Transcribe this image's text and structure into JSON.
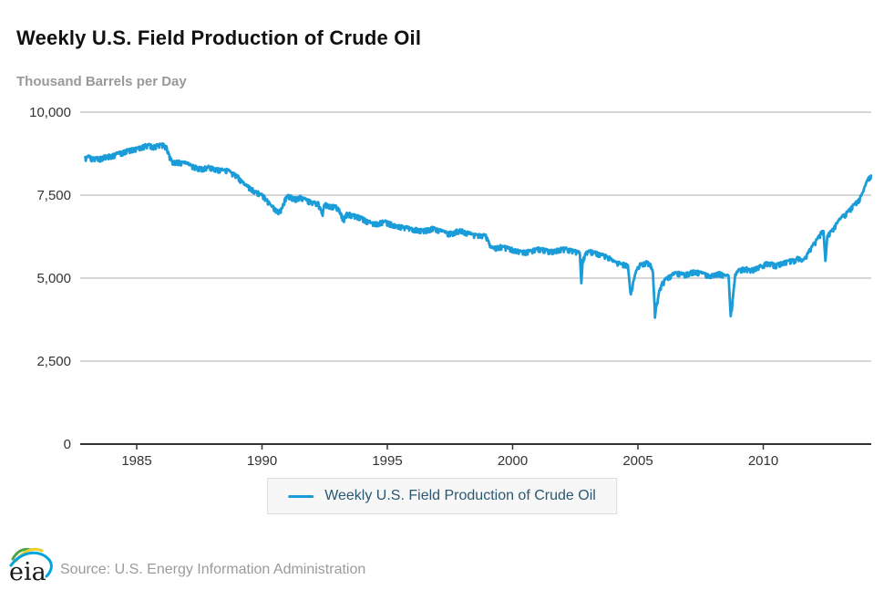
{
  "header": {
    "title": "Weekly U.S. Field Production of Crude Oil",
    "unit_label": "Thousand Barrels per Day"
  },
  "legend": {
    "items": [
      {
        "label": "Weekly U.S. Field Production of Crude Oil",
        "color": "#1a9cd8"
      }
    ]
  },
  "footer": {
    "source": "Source: U.S. Energy Information Administration",
    "logo_name": "eia-logo"
  },
  "colors": {
    "series_blue": "#1a9cd8",
    "gridline": "#d6d6d6",
    "axis_line": "#333333",
    "tick_text": "#333333",
    "subtitle_gray": "#999999",
    "legend_text": "#2b5871",
    "legend_bg": "#f7f7f7",
    "legend_border": "#dcdcdc"
  },
  "chart_data": {
    "type": "line",
    "title": "Weekly U.S. Field Production of Crude Oil",
    "ylabel": "Thousand Barrels per Day",
    "xlabel": "",
    "y_unit": "thousand barrels per day",
    "x_unit": "year (weekly observations, 1983 - mid 2014)",
    "xlim": [
      1982.9,
      2014.35
    ],
    "ylim": [
      0,
      10000
    ],
    "grid": "horizontal",
    "legend_position": "bottom",
    "yticks": [
      {
        "value": 0,
        "label": "0"
      },
      {
        "value": 2500,
        "label": "2,500"
      },
      {
        "value": 5000,
        "label": "5,000"
      },
      {
        "value": 7500,
        "label": "7,500"
      },
      {
        "value": 10000,
        "label": "10,000"
      }
    ],
    "xticks": [
      {
        "value": 1985,
        "label": "1985"
      },
      {
        "value": 1990,
        "label": "1990"
      },
      {
        "value": 1995,
        "label": "1995"
      },
      {
        "value": 2000,
        "label": "2000"
      },
      {
        "value": 2005,
        "label": "2005"
      },
      {
        "value": 2010,
        "label": "2010"
      }
    ],
    "series": [
      {
        "name": "Weekly U.S. Field Production of Crude Oil",
        "color": "#1a9cd8",
        "line_width": 2.8,
        "weekly_noise_kbd": 40,
        "anchor_points": [
          [
            1982.95,
            8620
          ],
          [
            1983.1,
            8660
          ],
          [
            1983.25,
            8600
          ],
          [
            1983.4,
            8630
          ],
          [
            1983.55,
            8610
          ],
          [
            1983.7,
            8660
          ],
          [
            1983.85,
            8680
          ],
          [
            1984.0,
            8700
          ],
          [
            1984.15,
            8730
          ],
          [
            1984.3,
            8770
          ],
          [
            1984.45,
            8800
          ],
          [
            1984.6,
            8850
          ],
          [
            1984.75,
            8880
          ],
          [
            1984.9,
            8900
          ],
          [
            1985.05,
            8920
          ],
          [
            1985.2,
            8960
          ],
          [
            1985.35,
            9000
          ],
          [
            1985.5,
            9020
          ],
          [
            1985.65,
            8970
          ],
          [
            1985.8,
            9000
          ],
          [
            1985.95,
            9040
          ],
          [
            1986.1,
            9000
          ],
          [
            1986.2,
            8950
          ],
          [
            1986.3,
            8700
          ],
          [
            1986.4,
            8520
          ],
          [
            1986.55,
            8510
          ],
          [
            1986.7,
            8500
          ],
          [
            1986.85,
            8490
          ],
          [
            1987.0,
            8460
          ],
          [
            1987.15,
            8400
          ],
          [
            1987.3,
            8360
          ],
          [
            1987.45,
            8330
          ],
          [
            1987.6,
            8300
          ],
          [
            1987.75,
            8330
          ],
          [
            1987.9,
            8350
          ],
          [
            1988.05,
            8320
          ],
          [
            1988.2,
            8290
          ],
          [
            1988.35,
            8260
          ],
          [
            1988.5,
            8260
          ],
          [
            1988.65,
            8270
          ],
          [
            1988.8,
            8170
          ],
          [
            1989.0,
            8100
          ],
          [
            1989.15,
            7950
          ],
          [
            1989.3,
            7820
          ],
          [
            1989.45,
            7760
          ],
          [
            1989.6,
            7680
          ],
          [
            1989.75,
            7610
          ],
          [
            1989.9,
            7550
          ],
          [
            1990.05,
            7480
          ],
          [
            1990.2,
            7360
          ],
          [
            1990.35,
            7200
          ],
          [
            1990.5,
            7100
          ],
          [
            1990.65,
            7020
          ],
          [
            1990.8,
            7090
          ],
          [
            1990.92,
            7400
          ],
          [
            1991.05,
            7480
          ],
          [
            1991.2,
            7440
          ],
          [
            1991.35,
            7390
          ],
          [
            1991.5,
            7460
          ],
          [
            1991.65,
            7400
          ],
          [
            1991.8,
            7340
          ],
          [
            1991.95,
            7310
          ],
          [
            1992.1,
            7280
          ],
          [
            1992.25,
            7260
          ],
          [
            1992.4,
            6910
          ],
          [
            1992.5,
            7230
          ],
          [
            1992.65,
            7200
          ],
          [
            1992.8,
            7170
          ],
          [
            1992.95,
            7150
          ],
          [
            1993.1,
            7060
          ],
          [
            1993.25,
            6760
          ],
          [
            1993.4,
            6960
          ],
          [
            1993.55,
            6910
          ],
          [
            1993.7,
            6890
          ],
          [
            1993.85,
            6860
          ],
          [
            1994.0,
            6810
          ],
          [
            1994.15,
            6740
          ],
          [
            1994.3,
            6690
          ],
          [
            1994.45,
            6660
          ],
          [
            1994.6,
            6650
          ],
          [
            1994.75,
            6690
          ],
          [
            1994.9,
            6710
          ],
          [
            1995.05,
            6660
          ],
          [
            1995.2,
            6630
          ],
          [
            1995.35,
            6590
          ],
          [
            1995.5,
            6560
          ],
          [
            1995.65,
            6540
          ],
          [
            1995.8,
            6520
          ],
          [
            1995.95,
            6510
          ],
          [
            1996.1,
            6480
          ],
          [
            1996.25,
            6460
          ],
          [
            1996.4,
            6450
          ],
          [
            1996.55,
            6460
          ],
          [
            1996.7,
            6490
          ],
          [
            1996.85,
            6520
          ],
          [
            1997.0,
            6470
          ],
          [
            1997.15,
            6430
          ],
          [
            1997.3,
            6390
          ],
          [
            1997.45,
            6360
          ],
          [
            1997.6,
            6360
          ],
          [
            1997.75,
            6420
          ],
          [
            1997.9,
            6450
          ],
          [
            1998.05,
            6410
          ],
          [
            1998.2,
            6370
          ],
          [
            1998.35,
            6330
          ],
          [
            1998.5,
            6300
          ],
          [
            1998.65,
            6300
          ],
          [
            1998.8,
            6310
          ],
          [
            1998.95,
            6280
          ],
          [
            1999.1,
            5950
          ],
          [
            1999.25,
            5900
          ],
          [
            1999.4,
            5940
          ],
          [
            1999.55,
            5960
          ],
          [
            1999.7,
            5930
          ],
          [
            1999.85,
            5900
          ],
          [
            2000.0,
            5870
          ],
          [
            2000.15,
            5840
          ],
          [
            2000.3,
            5810
          ],
          [
            2000.45,
            5800
          ],
          [
            2000.6,
            5810
          ],
          [
            2000.75,
            5840
          ],
          [
            2000.9,
            5870
          ],
          [
            2001.05,
            5890
          ],
          [
            2001.2,
            5870
          ],
          [
            2001.35,
            5840
          ],
          [
            2001.5,
            5820
          ],
          [
            2001.65,
            5830
          ],
          [
            2001.8,
            5860
          ],
          [
            2001.95,
            5880
          ],
          [
            2002.1,
            5890
          ],
          [
            2002.25,
            5860
          ],
          [
            2002.4,
            5830
          ],
          [
            2002.55,
            5800
          ],
          [
            2002.68,
            5760
          ],
          [
            2002.74,
            4850
          ],
          [
            2002.8,
            5550
          ],
          [
            2002.95,
            5790
          ],
          [
            2003.1,
            5810
          ],
          [
            2003.25,
            5790
          ],
          [
            2003.4,
            5750
          ],
          [
            2003.55,
            5710
          ],
          [
            2003.7,
            5670
          ],
          [
            2003.85,
            5630
          ],
          [
            2004.0,
            5520
          ],
          [
            2004.15,
            5470
          ],
          [
            2004.3,
            5440
          ],
          [
            2004.45,
            5420
          ],
          [
            2004.6,
            5390
          ],
          [
            2004.7,
            4550
          ],
          [
            2004.8,
            4820
          ],
          [
            2004.9,
            5160
          ],
          [
            2005.05,
            5400
          ],
          [
            2005.2,
            5440
          ],
          [
            2005.35,
            5480
          ],
          [
            2005.5,
            5440
          ],
          [
            2005.6,
            5150
          ],
          [
            2005.68,
            3900
          ],
          [
            2005.76,
            4250
          ],
          [
            2005.85,
            4600
          ],
          [
            2005.95,
            4820
          ],
          [
            2006.1,
            4960
          ],
          [
            2006.25,
            5060
          ],
          [
            2006.4,
            5120
          ],
          [
            2006.55,
            5160
          ],
          [
            2006.7,
            5140
          ],
          [
            2006.85,
            5110
          ],
          [
            2007.0,
            5150
          ],
          [
            2007.15,
            5190
          ],
          [
            2007.3,
            5210
          ],
          [
            2007.45,
            5170
          ],
          [
            2007.6,
            5140
          ],
          [
            2007.75,
            5110
          ],
          [
            2007.9,
            5090
          ],
          [
            2008.05,
            5120
          ],
          [
            2008.2,
            5150
          ],
          [
            2008.35,
            5130
          ],
          [
            2008.5,
            5090
          ],
          [
            2008.62,
            5050
          ],
          [
            2008.7,
            3850
          ],
          [
            2008.78,
            4350
          ],
          [
            2008.88,
            5080
          ],
          [
            2009.0,
            5220
          ],
          [
            2009.15,
            5280
          ],
          [
            2009.3,
            5300
          ],
          [
            2009.45,
            5250
          ],
          [
            2009.6,
            5270
          ],
          [
            2009.75,
            5320
          ],
          [
            2009.9,
            5370
          ],
          [
            2010.05,
            5420
          ],
          [
            2010.2,
            5470
          ],
          [
            2010.35,
            5430
          ],
          [
            2010.5,
            5390
          ],
          [
            2010.65,
            5440
          ],
          [
            2010.8,
            5490
          ],
          [
            2010.95,
            5510
          ],
          [
            2011.1,
            5530
          ],
          [
            2011.25,
            5550
          ],
          [
            2011.4,
            5620
          ],
          [
            2011.55,
            5500
          ],
          [
            2011.7,
            5650
          ],
          [
            2011.85,
            5850
          ],
          [
            2012.0,
            6020
          ],
          [
            2012.15,
            6180
          ],
          [
            2012.3,
            6350
          ],
          [
            2012.4,
            6420
          ],
          [
            2012.48,
            5520
          ],
          [
            2012.56,
            6280
          ],
          [
            2012.7,
            6400
          ],
          [
            2012.85,
            6550
          ],
          [
            2013.0,
            6720
          ],
          [
            2013.15,
            6850
          ],
          [
            2013.3,
            6950
          ],
          [
            2013.45,
            7060
          ],
          [
            2013.6,
            7200
          ],
          [
            2013.75,
            7320
          ],
          [
            2013.9,
            7460
          ],
          [
            2014.0,
            7620
          ],
          [
            2014.08,
            7800
          ],
          [
            2014.16,
            7960
          ],
          [
            2014.24,
            8060
          ],
          [
            2014.3,
            8090
          ]
        ]
      }
    ]
  }
}
